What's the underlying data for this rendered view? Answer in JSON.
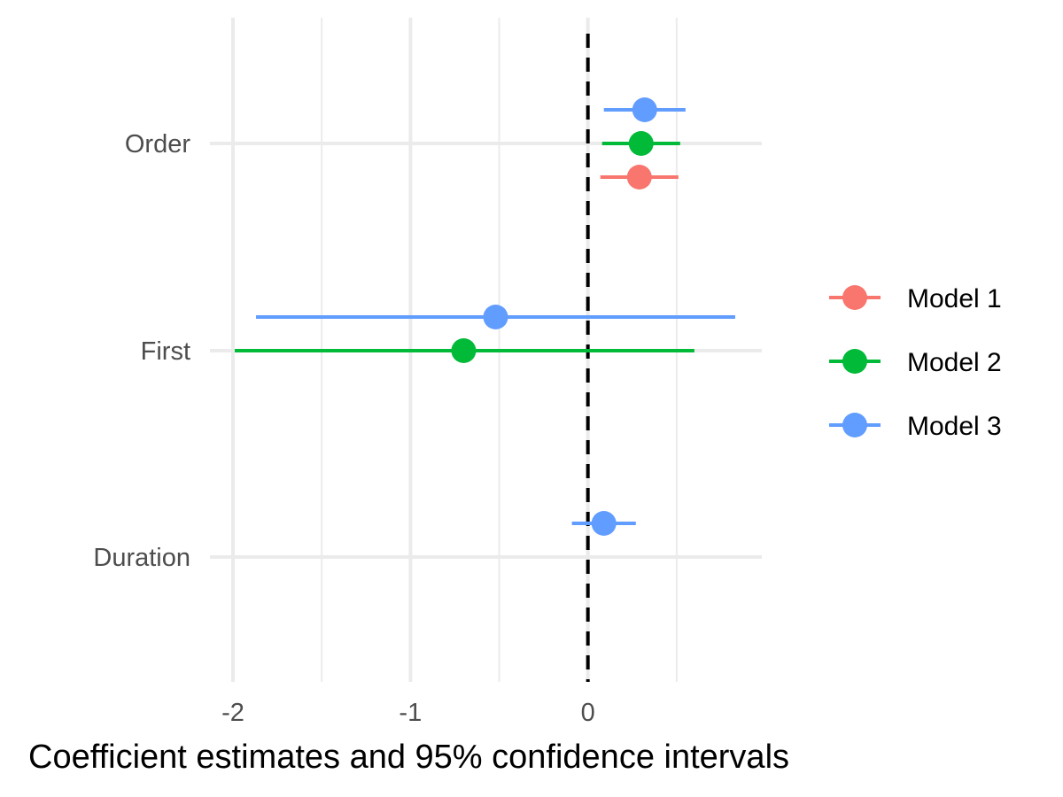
{
  "chart_data": {
    "type": "scatter",
    "subtype": "coefficient-plot",
    "title": "",
    "xlabel": "Coefficient estimates and 95% confidence intervals",
    "ylabel": "",
    "xlim": [
      -2.0,
      0.98
    ],
    "x_ticks": [
      "-2",
      "-1",
      "0"
    ],
    "x_tick_values": [
      -2,
      -1,
      0
    ],
    "categories": [
      "Order",
      "First",
      "Duration"
    ],
    "reference_line": 0,
    "grid": true,
    "legend_position": "right",
    "series": [
      {
        "name": "Model 1",
        "color": "#F8766D",
        "points": [
          {
            "term": "Order",
            "estimate": 0.29,
            "low": 0.07,
            "high": 0.51
          }
        ]
      },
      {
        "name": "Model 2",
        "color": "#00BA38",
        "points": [
          {
            "term": "Order",
            "estimate": 0.3,
            "low": 0.08,
            "high": 0.52
          },
          {
            "term": "First",
            "estimate": -0.7,
            "low": -1.99,
            "high": 0.6
          }
        ]
      },
      {
        "name": "Model 3",
        "color": "#619CFF",
        "points": [
          {
            "term": "Order",
            "estimate": 0.32,
            "low": 0.09,
            "high": 0.55
          },
          {
            "term": "First",
            "estimate": -0.52,
            "low": -1.87,
            "high": 0.83
          },
          {
            "term": "Duration",
            "estimate": 0.09,
            "low": -0.09,
            "high": 0.27
          }
        ]
      }
    ]
  }
}
